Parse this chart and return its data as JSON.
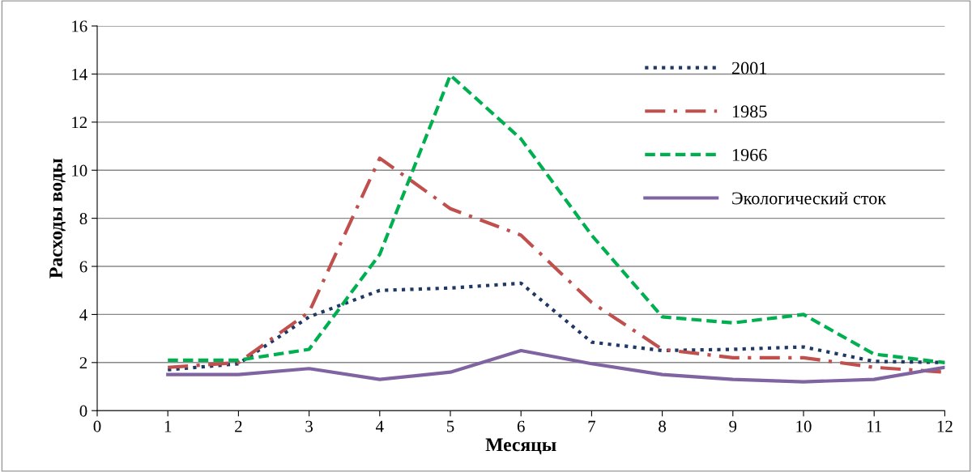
{
  "chart_data": {
    "type": "line",
    "xlabel": "Месяцы",
    "ylabel": "Расходы воды",
    "x": [
      1,
      2,
      3,
      4,
      5,
      6,
      7,
      8,
      9,
      10,
      11,
      12
    ],
    "xlim": [
      0,
      12
    ],
    "xticks": [
      0,
      1,
      2,
      3,
      4,
      5,
      6,
      7,
      8,
      9,
      10,
      11,
      12
    ],
    "ylim": [
      0,
      16
    ],
    "yticks": [
      0,
      2,
      4,
      6,
      8,
      10,
      12,
      14,
      16
    ],
    "grid": "y",
    "legend": "top right",
    "marker": "none",
    "series": [
      {
        "name": "2001",
        "color": "#1f3864",
        "line_style": "dotted",
        "values": [
          1.7,
          1.95,
          3.9,
          5.0,
          5.1,
          5.3,
          2.85,
          2.5,
          2.55,
          2.65,
          2.05,
          2.0
        ]
      },
      {
        "name": "1985",
        "color": "#c0504d",
        "line_style": "dashdot",
        "values": [
          1.8,
          2.0,
          4.1,
          10.5,
          8.4,
          7.3,
          4.5,
          2.55,
          2.2,
          2.2,
          1.8,
          1.6
        ]
      },
      {
        "name": "1966",
        "color": "#00b050",
        "line_style": "dashed",
        "values": [
          2.1,
          2.1,
          2.55,
          6.5,
          13.95,
          11.3,
          7.3,
          3.9,
          3.65,
          4.0,
          2.35,
          2.0
        ]
      },
      {
        "name": "Экологический сток",
        "color": "#8064a2",
        "line_style": "solid",
        "values": [
          1.5,
          1.5,
          1.75,
          1.3,
          1.6,
          2.5,
          1.95,
          1.5,
          1.3,
          1.2,
          1.3,
          1.8
        ]
      }
    ]
  }
}
